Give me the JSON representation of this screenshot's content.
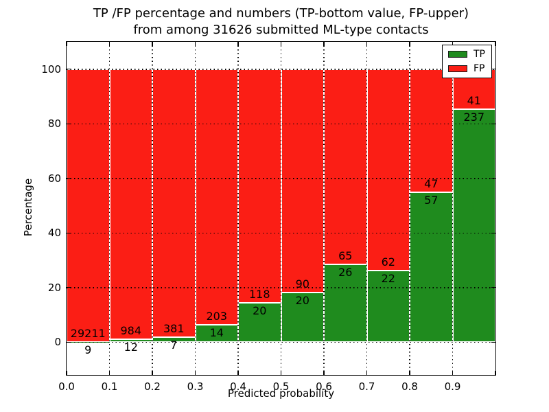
{
  "chart_data": {
    "type": "bar",
    "stacked": true,
    "normalized_to_100_percent": true,
    "title_line1": "TP /FP percentage and numbers (TP-bottom value, FP-upper)",
    "title_line2": "from among 31626 submitted ML-type contacts",
    "xlabel": "Predicted probability",
    "ylabel": "Percentage",
    "bin_edges": [
      0.0,
      0.1,
      0.2,
      0.3,
      0.4,
      0.5,
      0.6,
      0.7,
      0.8,
      0.9,
      1.0
    ],
    "x_tick_labels": [
      "0.0",
      "0.1",
      "0.2",
      "0.3",
      "0.4",
      "0.5",
      "0.6",
      "0.7",
      "0.8",
      "0.9"
    ],
    "y_ticks": [
      0,
      20,
      40,
      60,
      80,
      100
    ],
    "y_tick_labels": [
      "0",
      "20",
      "40",
      "60",
      "80",
      "100"
    ],
    "xlim": [
      0,
      1
    ],
    "ylim": [
      -12,
      110
    ],
    "grid": true,
    "grid_style": "dotted",
    "bar_edge_color": "#ffffff",
    "series": [
      {
        "name": "TP",
        "color": "#1f8b1e",
        "counts": [
          9,
          12,
          7,
          14,
          20,
          20,
          26,
          22,
          57,
          237
        ]
      },
      {
        "name": "FP",
        "color": "#fb1e15",
        "counts": [
          29211,
          984,
          381,
          203,
          118,
          90,
          65,
          62,
          47,
          41
        ]
      }
    ],
    "tp_percent_by_bin": [
      0.03,
      1.2,
      1.8,
      6.45,
      14.49,
      18.18,
      28.57,
      26.19,
      54.81,
      85.25
    ],
    "legend": {
      "position": "upper right",
      "entries": [
        {
          "label": "TP",
          "color": "#1f8b1e"
        },
        {
          "label": "FP",
          "color": "#fb1e15"
        }
      ]
    }
  }
}
